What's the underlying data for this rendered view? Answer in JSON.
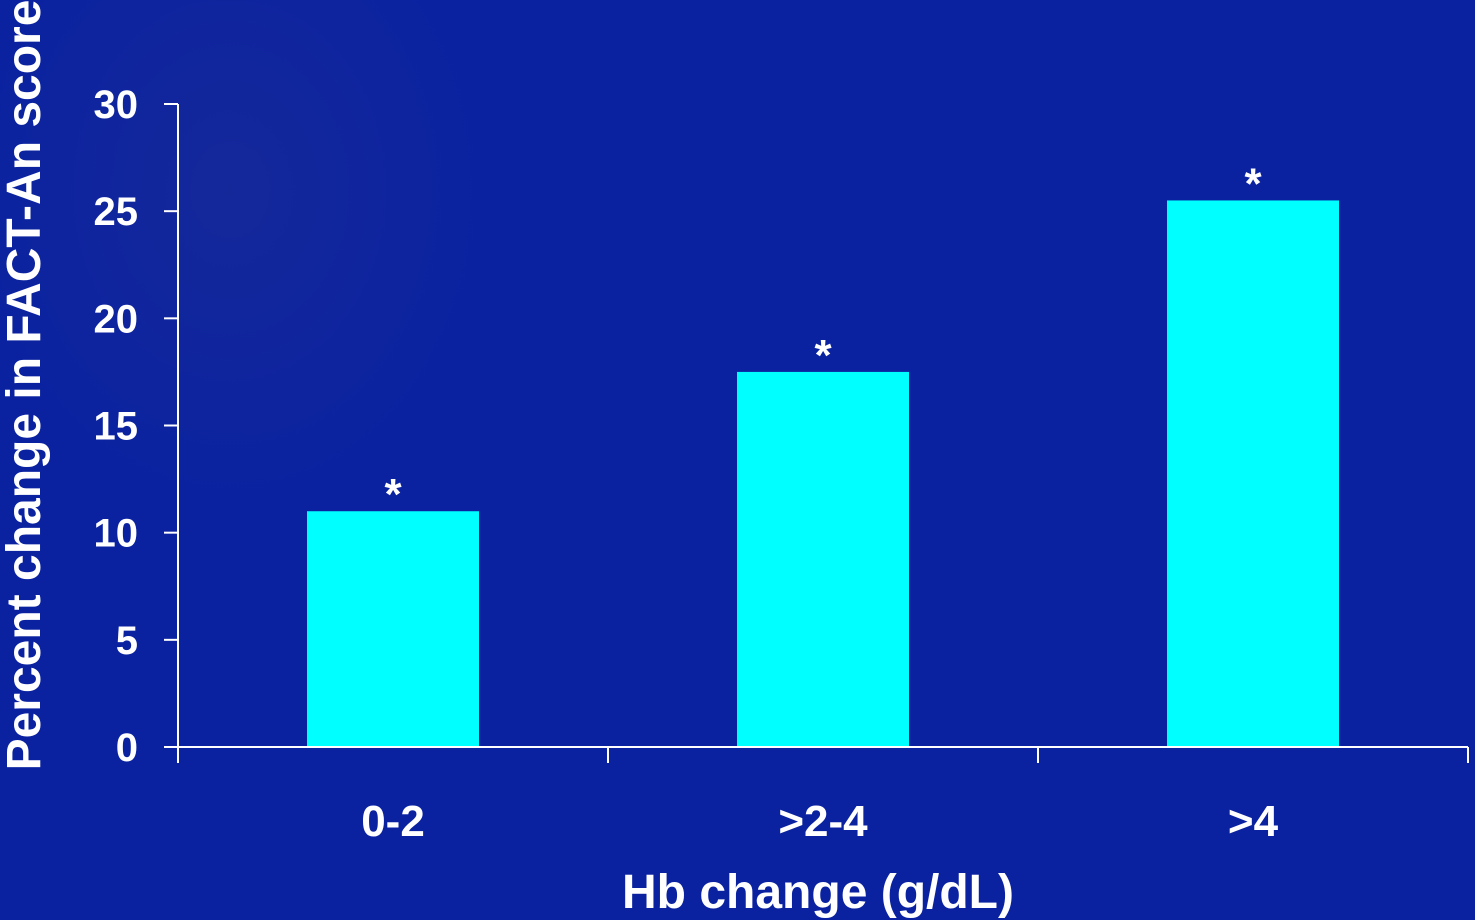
{
  "colors": {
    "background": "#0a22a0",
    "bar": "#00ffff",
    "axis": "#ffffff",
    "text": "#ffffff"
  },
  "chart_data": {
    "type": "bar",
    "title": "",
    "xlabel": "Hb change (g/dL)",
    "ylabel": "Percent change in FACT-An score",
    "categories": [
      "0-2",
      ">2-4",
      ">4"
    ],
    "values": [
      11,
      17.5,
      25.5
    ],
    "annotations": [
      "*",
      "*",
      "*"
    ],
    "ylim": [
      0,
      30
    ],
    "yticks": [
      0,
      5,
      10,
      15,
      20,
      25,
      30
    ],
    "grid": false,
    "legend": "none"
  }
}
